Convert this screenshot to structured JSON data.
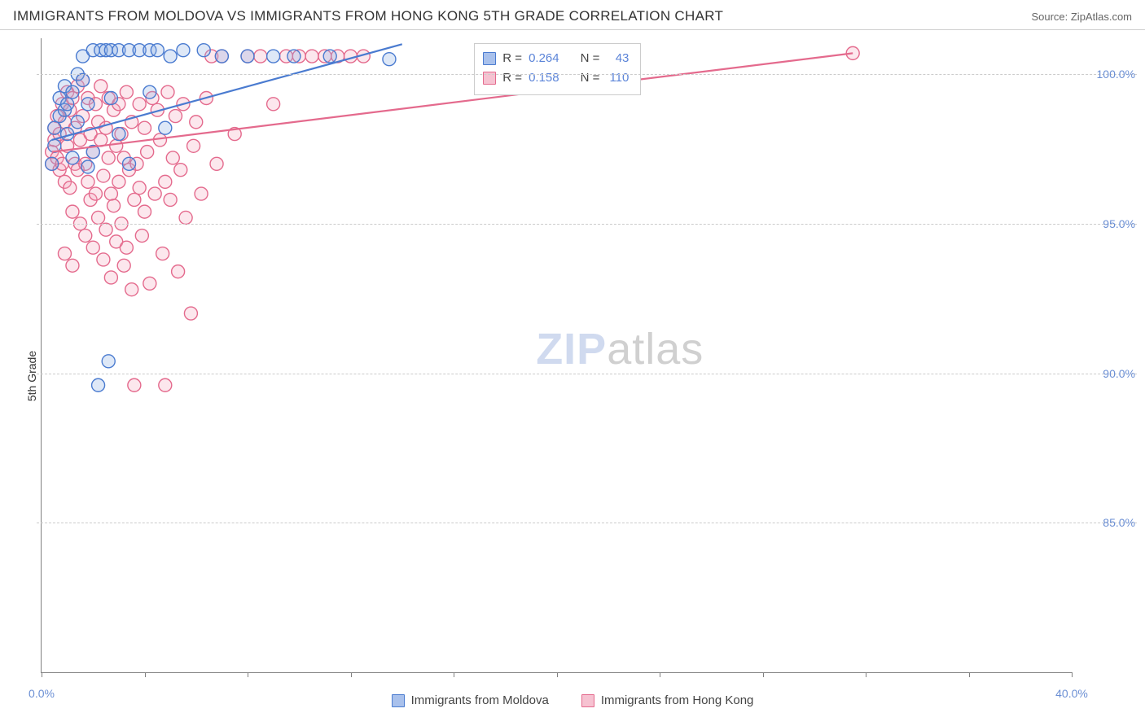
{
  "header": {
    "title": "IMMIGRANTS FROM MOLDOVA VS IMMIGRANTS FROM HONG KONG 5TH GRADE CORRELATION CHART",
    "source": "Source: ZipAtlas.com"
  },
  "chart": {
    "type": "scatter",
    "ylabel": "5th Grade",
    "xlim": [
      0,
      40
    ],
    "ylim": [
      80,
      101.2
    ],
    "xtick_positions": [
      0,
      4,
      8,
      12,
      16,
      20,
      24,
      28,
      32,
      36,
      40
    ],
    "xtick_labels": {
      "0": "0.0%",
      "40": "40.0%"
    },
    "ytick_positions": [
      85,
      90,
      95,
      100
    ],
    "ytick_labels": {
      "85": "85.0%",
      "90": "90.0%",
      "95": "95.0%",
      "100": "100.0%"
    },
    "background_color": "#ffffff",
    "grid_color": "#cccccc",
    "axis_color": "#808080",
    "tick_label_color": "#6b8fd4",
    "marker_radius": 8,
    "marker_stroke_width": 1.4,
    "marker_fill_opacity": 0.28,
    "trend_line_width": 2.2,
    "series": [
      {
        "name": "Immigrants from Moldova",
        "color_stroke": "#4a7bd0",
        "color_fill": "#8aabe4",
        "trend": {
          "x1": 0.4,
          "y1": 97.8,
          "x2": 14.0,
          "y2": 101.0
        },
        "points": [
          [
            0.4,
            97.0
          ],
          [
            0.5,
            97.6
          ],
          [
            0.5,
            98.2
          ],
          [
            0.7,
            98.6
          ],
          [
            0.7,
            99.2
          ],
          [
            0.9,
            98.8
          ],
          [
            0.9,
            99.6
          ],
          [
            1.0,
            99.0
          ],
          [
            1.0,
            98.0
          ],
          [
            1.2,
            99.4
          ],
          [
            1.2,
            97.2
          ],
          [
            1.4,
            98.4
          ],
          [
            1.4,
            100.0
          ],
          [
            1.6,
            100.6
          ],
          [
            1.6,
            99.8
          ],
          [
            1.8,
            99.0
          ],
          [
            1.8,
            96.9
          ],
          [
            2.0,
            100.8
          ],
          [
            2.0,
            97.4
          ],
          [
            2.3,
            100.8
          ],
          [
            2.5,
            100.8
          ],
          [
            2.7,
            99.2
          ],
          [
            2.7,
            100.8
          ],
          [
            3.0,
            100.8
          ],
          [
            3.0,
            98.0
          ],
          [
            3.4,
            100.8
          ],
          [
            3.4,
            97.0
          ],
          [
            3.8,
            100.8
          ],
          [
            4.2,
            100.8
          ],
          [
            4.2,
            99.4
          ],
          [
            4.5,
            100.8
          ],
          [
            4.8,
            98.2
          ],
          [
            5.0,
            100.6
          ],
          [
            5.5,
            100.8
          ],
          [
            6.3,
            100.8
          ],
          [
            7.0,
            100.6
          ],
          [
            8.0,
            100.6
          ],
          [
            9.0,
            100.6
          ],
          [
            9.8,
            100.6
          ],
          [
            11.2,
            100.6
          ],
          [
            13.5,
            100.5
          ],
          [
            2.2,
            89.6
          ],
          [
            2.6,
            90.4
          ]
        ]
      },
      {
        "name": "Immigrants from Hong Kong",
        "color_stroke": "#e46a8d",
        "color_fill": "#f3a9bd",
        "trend": {
          "x1": 0.4,
          "y1": 97.4,
          "x2": 31.5,
          "y2": 100.7
        },
        "points": [
          [
            0.4,
            97.0
          ],
          [
            0.4,
            97.4
          ],
          [
            0.5,
            97.8
          ],
          [
            0.5,
            98.2
          ],
          [
            0.6,
            98.6
          ],
          [
            0.6,
            97.2
          ],
          [
            0.7,
            96.8
          ],
          [
            0.7,
            98.0
          ],
          [
            0.8,
            97.0
          ],
          [
            0.8,
            99.0
          ],
          [
            0.9,
            98.4
          ],
          [
            0.9,
            96.4
          ],
          [
            1.0,
            97.6
          ],
          [
            1.0,
            99.4
          ],
          [
            1.1,
            98.8
          ],
          [
            1.1,
            96.2
          ],
          [
            1.2,
            99.2
          ],
          [
            1.2,
            95.4
          ],
          [
            1.3,
            97.0
          ],
          [
            1.3,
            98.2
          ],
          [
            1.4,
            99.6
          ],
          [
            1.4,
            96.8
          ],
          [
            1.5,
            95.0
          ],
          [
            1.5,
            97.8
          ],
          [
            1.6,
            98.6
          ],
          [
            1.6,
            99.8
          ],
          [
            1.7,
            94.6
          ],
          [
            1.7,
            97.0
          ],
          [
            1.8,
            99.2
          ],
          [
            1.8,
            96.4
          ],
          [
            1.9,
            98.0
          ],
          [
            1.9,
            95.8
          ],
          [
            2.0,
            94.2
          ],
          [
            2.0,
            97.4
          ],
          [
            2.1,
            99.0
          ],
          [
            2.1,
            96.0
          ],
          [
            2.2,
            98.4
          ],
          [
            2.2,
            95.2
          ],
          [
            2.3,
            97.8
          ],
          [
            2.3,
            99.6
          ],
          [
            2.4,
            96.6
          ],
          [
            2.4,
            93.8
          ],
          [
            2.5,
            98.2
          ],
          [
            2.5,
            94.8
          ],
          [
            2.6,
            97.2
          ],
          [
            2.6,
            99.2
          ],
          [
            2.7,
            96.0
          ],
          [
            2.7,
            93.2
          ],
          [
            2.8,
            98.8
          ],
          [
            2.8,
            95.6
          ],
          [
            2.9,
            97.6
          ],
          [
            2.9,
            94.4
          ],
          [
            3.0,
            99.0
          ],
          [
            3.0,
            96.4
          ],
          [
            3.1,
            95.0
          ],
          [
            3.1,
            98.0
          ],
          [
            3.2,
            93.6
          ],
          [
            3.2,
            97.2
          ],
          [
            3.3,
            99.4
          ],
          [
            3.3,
            94.2
          ],
          [
            3.4,
            96.8
          ],
          [
            3.5,
            98.4
          ],
          [
            3.5,
            92.8
          ],
          [
            3.6,
            95.8
          ],
          [
            3.7,
            97.0
          ],
          [
            3.8,
            99.0
          ],
          [
            3.8,
            96.2
          ],
          [
            3.9,
            94.6
          ],
          [
            4.0,
            98.2
          ],
          [
            4.0,
            95.4
          ],
          [
            4.1,
            97.4
          ],
          [
            4.2,
            93.0
          ],
          [
            4.3,
            99.2
          ],
          [
            4.4,
            96.0
          ],
          [
            4.5,
            98.8
          ],
          [
            4.6,
            97.8
          ],
          [
            4.7,
            94.0
          ],
          [
            4.8,
            96.4
          ],
          [
            4.9,
            99.4
          ],
          [
            5.0,
            95.8
          ],
          [
            5.1,
            97.2
          ],
          [
            5.2,
            98.6
          ],
          [
            5.3,
            93.4
          ],
          [
            5.4,
            96.8
          ],
          [
            5.5,
            99.0
          ],
          [
            5.6,
            95.2
          ],
          [
            5.8,
            92.0
          ],
          [
            5.9,
            97.6
          ],
          [
            6.0,
            98.4
          ],
          [
            6.2,
            96.0
          ],
          [
            6.4,
            99.2
          ],
          [
            6.6,
            100.6
          ],
          [
            6.8,
            97.0
          ],
          [
            7.0,
            100.6
          ],
          [
            7.5,
            98.0
          ],
          [
            8.0,
            100.6
          ],
          [
            8.5,
            100.6
          ],
          [
            9.0,
            99.0
          ],
          [
            9.5,
            100.6
          ],
          [
            10.0,
            100.6
          ],
          [
            10.5,
            100.6
          ],
          [
            11.0,
            100.6
          ],
          [
            11.5,
            100.6
          ],
          [
            12.0,
            100.6
          ],
          [
            12.5,
            100.6
          ],
          [
            31.5,
            100.7
          ],
          [
            3.6,
            89.6
          ],
          [
            4.8,
            89.6
          ],
          [
            1.2,
            93.6
          ],
          [
            0.9,
            94.0
          ]
        ]
      }
    ],
    "stats_box": {
      "rows": [
        {
          "swatch_stroke": "#4a7bd0",
          "swatch_fill": "#a9c1ec",
          "r_label": "R =",
          "r_value": "0.264",
          "n_label": "N =",
          "n_value": "43"
        },
        {
          "swatch_stroke": "#e46a8d",
          "swatch_fill": "#f6c2d1",
          "r_label": "R =",
          "r_value": "0.158",
          "n_label": "N =",
          "n_value": "110"
        }
      ]
    },
    "legend": [
      {
        "swatch_stroke": "#4a7bd0",
        "swatch_fill": "#a9c1ec",
        "label": "Immigrants from Moldova"
      },
      {
        "swatch_stroke": "#e46a8d",
        "swatch_fill": "#f6c2d1",
        "label": "Immigrants from Hong Kong"
      }
    ],
    "watermark": {
      "part1": "ZIP",
      "part2": "atlas"
    }
  }
}
